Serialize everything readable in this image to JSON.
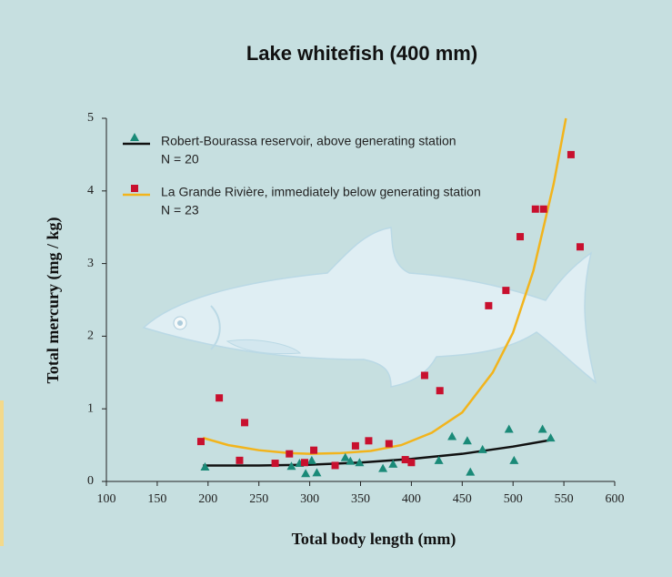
{
  "chart_data": {
    "type": "scatter",
    "title": "Lake whitefish (400 mm)",
    "x_label": "Total body length (mm)",
    "y_label": "Total mercury (mg / kg)",
    "xlim": [
      100,
      600
    ],
    "xticks": [
      100,
      150,
      200,
      250,
      300,
      350,
      400,
      450,
      500,
      550,
      600
    ],
    "ylim": [
      0,
      5
    ],
    "yticks": [
      0,
      1,
      2,
      3,
      4,
      5
    ],
    "series": [
      {
        "name": "Robert-Bourassa reservoir, above generating station",
        "note": "N = 20",
        "color": "#1a8a78",
        "marker": "triangle",
        "line_color": "#111111",
        "x": [
          197,
          282,
          290,
          296,
          302,
          307,
          335,
          340,
          349,
          372,
          382,
          427,
          440,
          455,
          458,
          470,
          496,
          501,
          529,
          537
        ],
        "values": [
          0.2,
          0.21,
          0.25,
          0.11,
          0.29,
          0.12,
          0.33,
          0.28,
          0.26,
          0.18,
          0.24,
          0.29,
          0.62,
          0.56,
          0.13,
          0.44,
          0.72,
          0.29,
          0.72,
          0.6
        ],
        "fit": {
          "x": [
            195,
            250,
            300,
            350,
            400,
            450,
            500,
            537
          ],
          "values": [
            0.22,
            0.22,
            0.23,
            0.26,
            0.31,
            0.38,
            0.48,
            0.57
          ]
        }
      },
      {
        "name": "La Grande Rivière, immediately below generating station",
        "note": "N = 23",
        "color": "#c8102e",
        "marker": "square",
        "line_color": "#f2b41c",
        "x": [
          193,
          211,
          236,
          231,
          266,
          280,
          295,
          304,
          325,
          345,
          358,
          378,
          394,
          400,
          413,
          428,
          476,
          493,
          507,
          522,
          530,
          557,
          566
        ],
        "values": [
          0.55,
          1.15,
          0.81,
          0.29,
          0.25,
          0.38,
          0.26,
          0.43,
          0.22,
          0.49,
          0.56,
          0.52,
          0.3,
          0.26,
          1.46,
          1.25,
          2.42,
          2.63,
          3.37,
          3.75,
          3.75,
          4.5,
          3.23
        ],
        "fit": {
          "x": [
            195,
            220,
            250,
            280,
            300,
            330,
            360,
            390,
            420,
            450,
            480,
            500,
            520,
            540,
            552
          ],
          "values": [
            0.6,
            0.5,
            0.43,
            0.39,
            0.38,
            0.39,
            0.42,
            0.5,
            0.67,
            0.95,
            1.5,
            2.05,
            2.9,
            4.1,
            5.0
          ]
        }
      }
    ]
  }
}
